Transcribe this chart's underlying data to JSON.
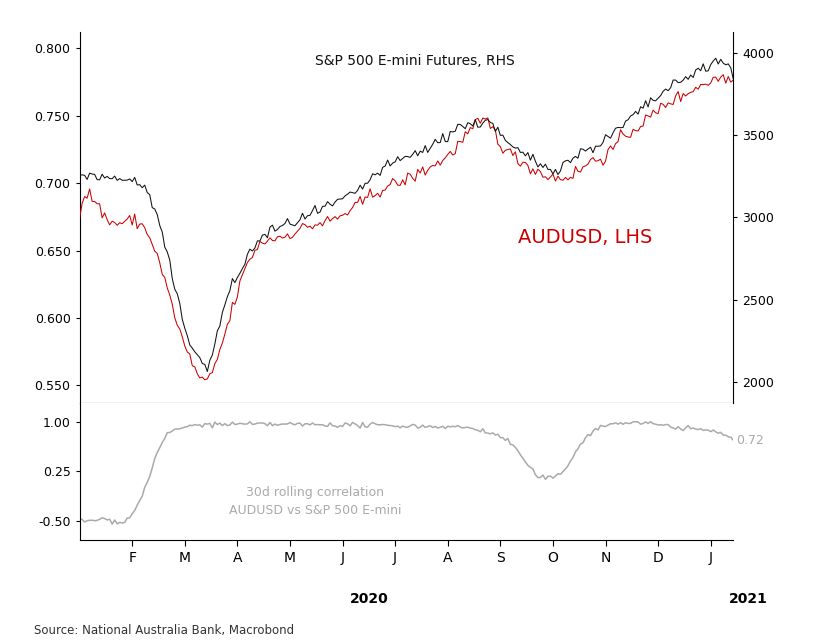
{
  "title_top": "S&P 500 E-mini Futures, RHS",
  "label_audusd": "AUDUSD, LHS",
  "label_corr": "30d rolling correlation\nAUDUSD vs S&P 500 E-mini",
  "corr_value_label": "0.72",
  "source_text": "Source: National Australia Bank, Macrobond",
  "aud_ylim": [
    0.537,
    0.812
  ],
  "aud_yticks": [
    0.55,
    0.6,
    0.65,
    0.7,
    0.75,
    0.8
  ],
  "sp_ylim": [
    1875,
    4125
  ],
  "sp_yticks": [
    2000,
    2500,
    3000,
    3500,
    4000
  ],
  "corr_ylim": [
    -0.8,
    1.3
  ],
  "corr_yticks": [
    -0.5,
    0.25,
    1.0
  ],
  "xtick_labels": [
    "F",
    "M",
    "A",
    "M",
    "J",
    "J",
    "A",
    "S",
    "O",
    "N",
    "D",
    "J"
  ],
  "color_audusd": "#cc0000",
  "color_sp500": "#111111",
  "color_corr": "#aaaaaa",
  "background_color": "#ffffff",
  "noise_seed": 42
}
